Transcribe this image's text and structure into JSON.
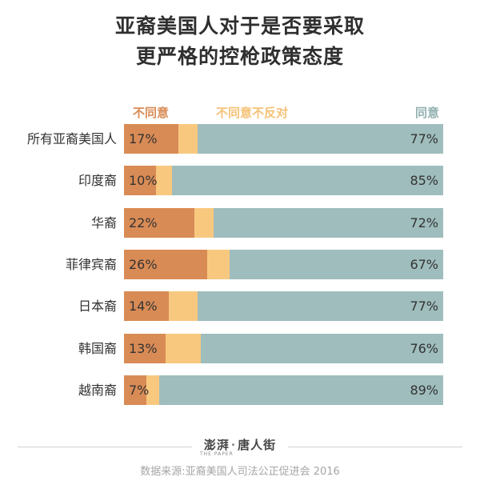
{
  "chart_data": {
    "type": "bar",
    "stacked": true,
    "orientation": "horizontal",
    "title_line1": "亚裔美国人对于是否要采取",
    "title_line2": "更严格的控枪政策态度",
    "legend": [
      "不同意",
      "不同意不反对",
      "同意"
    ],
    "colors": {
      "disagree": "#d98b55",
      "neutral": "#f8c87f",
      "agree": "#9fbdbd"
    },
    "categories": [
      "所有亚裔美国人",
      "印度裔",
      "华裔",
      "菲律宾裔",
      "日本裔",
      "韩国裔",
      "越南裔"
    ],
    "series": [
      {
        "name": "不同意",
        "values": [
          17,
          10,
          22,
          26,
          14,
          13,
          7
        ],
        "labels": [
          "17%",
          "10%",
          "22%",
          "26%",
          "14%",
          "13%",
          "7%"
        ]
      },
      {
        "name": "不同意不反对",
        "values": [
          6,
          5,
          6,
          7,
          9,
          11,
          4
        ]
      },
      {
        "name": "同意",
        "values": [
          77,
          85,
          72,
          67,
          77,
          76,
          89
        ],
        "labels": [
          "77%",
          "85%",
          "72%",
          "67%",
          "77%",
          "76%",
          "89%"
        ]
      }
    ]
  },
  "footer": {
    "logo_left": "澎湃",
    "logo_sep": "·",
    "logo_right": "唐人街",
    "logo_sub": "THE PAPER",
    "source": "数据来源:亚裔美国人司法公正促进会 2016"
  }
}
